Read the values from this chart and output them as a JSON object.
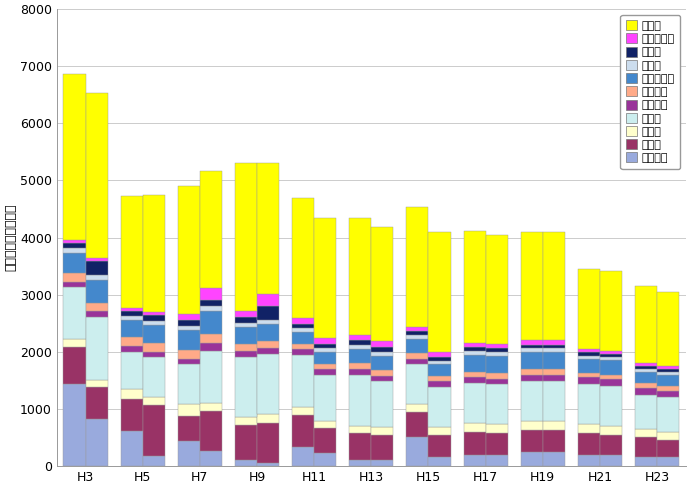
{
  "x_labels": [
    "H3",
    "H5",
    "H7",
    "H9",
    "H11",
    "H13",
    "H15",
    "H17",
    "H19",
    "H21",
    "H23"
  ],
  "series_order": [
    "まいわし",
    "いか類",
    "まあじ",
    "ぶり類",
    "さわら類",
    "かれい類",
    "ずわいがに",
    "まだい",
    "ひらめ",
    "あまだい類",
    "その他"
  ],
  "series": {
    "まいわし": [
      1430,
      830,
      620,
      170,
      430,
      260,
      110,
      60,
      340,
      230,
      100,
      100,
      500,
      150,
      200,
      200,
      250,
      250,
      200,
      200,
      150,
      150
    ],
    "いか類": [
      650,
      550,
      550,
      900,
      450,
      700,
      600,
      700,
      550,
      430,
      470,
      450,
      450,
      400,
      400,
      380,
      380,
      380,
      380,
      350,
      350,
      300
    ],
    "まあじ": [
      150,
      130,
      180,
      130,
      200,
      150,
      150,
      150,
      150,
      130,
      130,
      130,
      130,
      130,
      150,
      150,
      150,
      150,
      150,
      150,
      150,
      150
    ],
    "ぶり類": [
      900,
      1100,
      650,
      700,
      700,
      900,
      1050,
      1050,
      900,
      800,
      900,
      800,
      700,
      700,
      700,
      700,
      700,
      700,
      700,
      700,
      600,
      600
    ],
    "さわら類": [
      100,
      100,
      100,
      100,
      100,
      150,
      100,
      100,
      100,
      100,
      100,
      100,
      100,
      100,
      100,
      100,
      120,
      120,
      120,
      120,
      120,
      120
    ],
    "かれい類": [
      150,
      150,
      150,
      150,
      150,
      150,
      120,
      120,
      100,
      100,
      100,
      100,
      100,
      100,
      100,
      100,
      100,
      100,
      80,
      80,
      80,
      80
    ],
    "ずわいがに": [
      350,
      400,
      300,
      320,
      350,
      400,
      300,
      300,
      200,
      200,
      250,
      250,
      250,
      200,
      300,
      300,
      300,
      300,
      250,
      250,
      200,
      200
    ],
    "まだい": [
      80,
      80,
      70,
      70,
      80,
      100,
      80,
      80,
      70,
      70,
      70,
      70,
      60,
      60,
      60,
      60,
      60,
      60,
      50,
      50,
      50,
      50
    ],
    "ひらめ": [
      100,
      250,
      100,
      100,
      100,
      100,
      100,
      250,
      80,
      80,
      80,
      80,
      70,
      70,
      70,
      70,
      60,
      60,
      60,
      60,
      50,
      50
    ],
    "あまだい類": [
      50,
      50,
      50,
      50,
      100,
      200,
      100,
      200,
      100,
      100,
      100,
      100,
      80,
      80,
      80,
      80,
      80,
      80,
      60,
      60,
      50,
      50
    ],
    "その他": [
      2900,
      2900,
      1950,
      2050,
      2250,
      2050,
      2600,
      2300,
      2100,
      2100,
      2050,
      2000,
      2100,
      2100,
      1950,
      1900,
      1900,
      1900,
      1400,
      1400,
      1350,
      1300
    ]
  },
  "colors": {
    "まいわし": "#99AADD",
    "いか類": "#993366",
    "まあじ": "#FFFFCC",
    "ぶり類": "#CCEEEE",
    "さわら類": "#993399",
    "かれい類": "#FFAA88",
    "ずわいがに": "#4488CC",
    "まだい": "#CCDDEE",
    "ひらめ": "#112266",
    "あまだい類": "#FF44FF",
    "その他": "#FFFF00"
  },
  "ylabel": "生産金額（百万円）",
  "ylim": [
    0,
    8000
  ],
  "yticks": [
    0,
    1000,
    2000,
    3000,
    4000,
    5000,
    6000,
    7000,
    8000
  ],
  "bg_color": "#FFFFFF",
  "grid_color": "#CCCCCC"
}
